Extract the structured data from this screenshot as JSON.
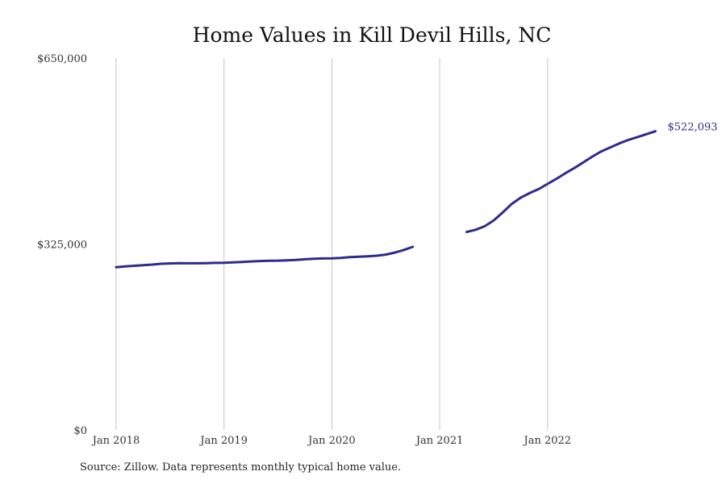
{
  "chart_data": {
    "type": "line",
    "title": "Home Values in Kill Devil Hills, NC",
    "xlabel": "",
    "ylabel": "",
    "x_ticks": [
      "Jan 2018",
      "Jan 2019",
      "Jan 2020",
      "Jan 2021",
      "Jan 2022"
    ],
    "y_ticks": [
      "$0",
      "$325,000",
      "$650,000"
    ],
    "ylim": [
      0,
      650000
    ],
    "grid": "vertical",
    "line_color": "#2e2b8c",
    "end_label": "$522,093",
    "series": [
      {
        "segments": [
          {
            "points": [
              [
                "2018-01",
                284500
              ],
              [
                "2018-02",
                286000
              ],
              [
                "2018-03",
                287000
              ],
              [
                "2018-04",
                288000
              ],
              [
                "2018-05",
                289000
              ],
              [
                "2018-06",
                290500
              ],
              [
                "2018-07",
                291000
              ],
              [
                "2018-08",
                291500
              ],
              [
                "2018-09",
                291300
              ],
              [
                "2018-10",
                291300
              ],
              [
                "2018-11",
                291500
              ],
              [
                "2018-12",
                292000
              ],
              [
                "2019-01",
                292200
              ],
              [
                "2019-02",
                292800
              ],
              [
                "2019-03",
                293500
              ],
              [
                "2019-04",
                294500
              ],
              [
                "2019-05",
                295200
              ],
              [
                "2019-06",
                295800
              ],
              [
                "2019-07",
                296000
              ],
              [
                "2019-08",
                296500
              ],
              [
                "2019-09",
                297200
              ],
              [
                "2019-10",
                298400
              ],
              [
                "2019-11",
                299200
              ],
              [
                "2019-12",
                299700
              ],
              [
                "2020-01",
                300000
              ],
              [
                "2020-02",
                300800
              ],
              [
                "2020-03",
                302000
              ],
              [
                "2020-04",
                302800
              ],
              [
                "2020-05",
                303500
              ],
              [
                "2020-06",
                304500
              ],
              [
                "2020-07",
                306500
              ],
              [
                "2020-08",
                310000
              ],
              [
                "2020-09",
                314500
              ],
              [
                "2020-10",
                320000
              ]
            ]
          },
          {
            "points": [
              [
                "2021-04",
                346000
              ],
              [
                "2021-05",
                350000
              ],
              [
                "2021-06",
                356000
              ],
              [
                "2021-07",
                366000
              ],
              [
                "2021-08",
                380000
              ],
              [
                "2021-09",
                395000
              ],
              [
                "2021-10",
                406000
              ],
              [
                "2021-11",
                414000
              ],
              [
                "2021-12",
                421000
              ],
              [
                "2022-01",
                430000
              ],
              [
                "2022-02",
                439000
              ],
              [
                "2022-03",
                449000
              ],
              [
                "2022-04",
                458000
              ],
              [
                "2022-05",
                468000
              ],
              [
                "2022-06",
                478000
              ],
              [
                "2022-07",
                487000
              ],
              [
                "2022-08",
                494000
              ],
              [
                "2022-09",
                501000
              ],
              [
                "2022-10",
                507000
              ],
              [
                "2022-11",
                512000
              ],
              [
                "2022-12",
                517000
              ],
              [
                "2023-01",
                522093
              ]
            ]
          }
        ]
      }
    ]
  },
  "source_text": "Source: Zillow. Data represents monthly typical home value."
}
